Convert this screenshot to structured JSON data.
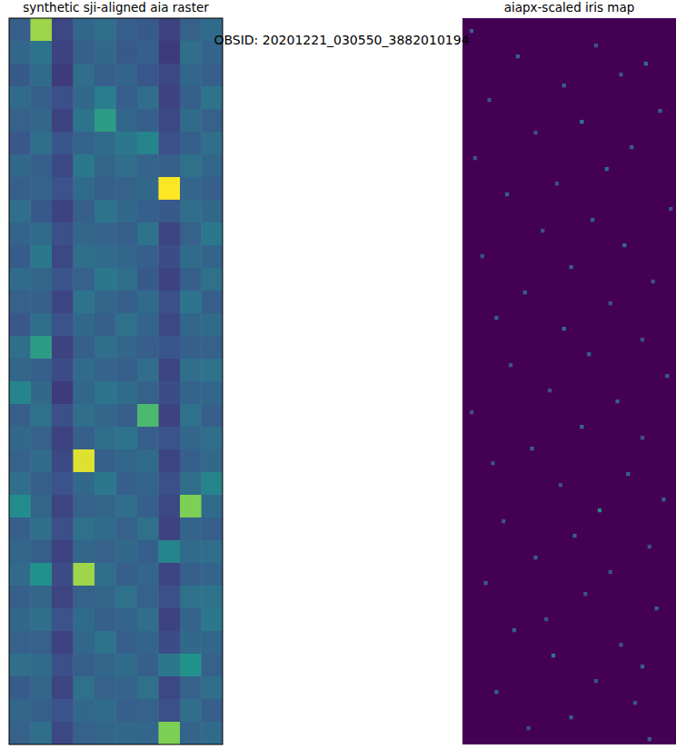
{
  "suptitle": "OBSID: 20201221_030550_3882010194",
  "chart_data": [
    {
      "type": "heatmap",
      "title": "synthetic sji-aligned aia raster",
      "tick_labels": false,
      "zlim": [
        0,
        1
      ],
      "cells": [
        [
          0.3,
          0.85,
          0.22,
          0.33,
          0.36,
          0.3,
          0.28,
          0.2,
          0.31,
          0.35
        ],
        [
          0.33,
          0.38,
          0.2,
          0.3,
          0.34,
          0.28,
          0.3,
          0.18,
          0.36,
          0.32
        ],
        [
          0.28,
          0.35,
          0.18,
          0.36,
          0.3,
          0.32,
          0.27,
          0.22,
          0.33,
          0.3
        ],
        [
          0.35,
          0.3,
          0.24,
          0.34,
          0.42,
          0.3,
          0.36,
          0.2,
          0.3,
          0.38
        ],
        [
          0.31,
          0.33,
          0.2,
          0.38,
          0.55,
          0.33,
          0.3,
          0.22,
          0.35,
          0.31
        ],
        [
          0.27,
          0.36,
          0.26,
          0.32,
          0.35,
          0.4,
          0.45,
          0.24,
          0.3,
          0.36
        ],
        [
          0.34,
          0.3,
          0.22,
          0.4,
          0.33,
          0.36,
          0.32,
          0.3,
          0.37,
          0.33
        ],
        [
          0.3,
          0.32,
          0.25,
          0.35,
          0.3,
          0.31,
          0.34,
          1.0,
          0.33,
          0.3
        ],
        [
          0.36,
          0.28,
          0.2,
          0.3,
          0.38,
          0.34,
          0.3,
          0.28,
          0.36,
          0.34
        ],
        [
          0.32,
          0.35,
          0.24,
          0.33,
          0.32,
          0.3,
          0.38,
          0.21,
          0.31,
          0.4
        ],
        [
          0.29,
          0.4,
          0.22,
          0.36,
          0.35,
          0.33,
          0.3,
          0.23,
          0.35,
          0.32
        ],
        [
          0.35,
          0.33,
          0.26,
          0.31,
          0.4,
          0.36,
          0.28,
          0.2,
          0.3,
          0.37
        ],
        [
          0.31,
          0.3,
          0.21,
          0.38,
          0.33,
          0.3,
          0.35,
          0.24,
          0.38,
          0.3
        ],
        [
          0.27,
          0.36,
          0.25,
          0.34,
          0.3,
          0.37,
          0.32,
          0.22,
          0.33,
          0.35
        ],
        [
          0.36,
          0.55,
          0.2,
          0.3,
          0.36,
          0.33,
          0.3,
          0.26,
          0.3,
          0.31
        ],
        [
          0.33,
          0.3,
          0.23,
          0.35,
          0.32,
          0.3,
          0.36,
          0.21,
          0.36,
          0.38
        ],
        [
          0.45,
          0.34,
          0.18,
          0.33,
          0.38,
          0.35,
          0.31,
          0.23,
          0.32,
          0.33
        ],
        [
          0.3,
          0.37,
          0.24,
          0.36,
          0.33,
          0.3,
          0.68,
          0.2,
          0.37,
          0.3
        ],
        [
          0.34,
          0.31,
          0.2,
          0.3,
          0.36,
          0.38,
          0.3,
          0.25,
          0.33,
          0.36
        ],
        [
          0.31,
          0.35,
          0.22,
          0.95,
          0.3,
          0.33,
          0.35,
          0.21,
          0.3,
          0.34
        ],
        [
          0.36,
          0.3,
          0.25,
          0.34,
          0.4,
          0.3,
          0.32,
          0.24,
          0.36,
          0.45
        ],
        [
          0.48,
          0.33,
          0.21,
          0.31,
          0.33,
          0.36,
          0.3,
          0.22,
          0.8,
          0.35
        ],
        [
          0.3,
          0.36,
          0.24,
          0.37,
          0.35,
          0.31,
          0.37,
          0.2,
          0.32,
          0.3
        ],
        [
          0.33,
          0.3,
          0.2,
          0.33,
          0.31,
          0.34,
          0.3,
          0.45,
          0.35,
          0.36
        ],
        [
          0.35,
          0.5,
          0.23,
          0.85,
          0.36,
          0.3,
          0.33,
          0.21,
          0.3,
          0.32
        ],
        [
          0.3,
          0.33,
          0.21,
          0.31,
          0.33,
          0.37,
          0.31,
          0.24,
          0.37,
          0.38
        ],
        [
          0.34,
          0.36,
          0.25,
          0.35,
          0.3,
          0.32,
          0.36,
          0.2,
          0.32,
          0.4
        ],
        [
          0.31,
          0.31,
          0.2,
          0.33,
          0.38,
          0.3,
          0.32,
          0.23,
          0.34,
          0.33
        ],
        [
          0.36,
          0.35,
          0.24,
          0.3,
          0.33,
          0.35,
          0.3,
          0.4,
          0.5,
          0.31
        ],
        [
          0.29,
          0.33,
          0.21,
          0.37,
          0.31,
          0.32,
          0.37,
          0.22,
          0.31,
          0.36
        ],
        [
          0.33,
          0.3,
          0.25,
          0.34,
          0.35,
          0.3,
          0.31,
          0.24,
          0.36,
          0.3
        ],
        [
          0.31,
          0.36,
          0.22,
          0.31,
          0.33,
          0.34,
          0.33,
          0.8,
          0.32,
          0.35
        ]
      ]
    },
    {
      "type": "heatmap",
      "title": "aiapx-scaled iris map",
      "tick_labels": false,
      "zlim": [
        0,
        1
      ],
      "shape": [
        200,
        60
      ],
      "background": 0,
      "cells": [
        [
          3,
          2,
          0.3
        ],
        [
          7,
          37,
          0.25
        ],
        [
          10,
          15,
          0.3
        ],
        [
          12,
          51,
          0.35
        ],
        [
          15,
          44,
          0.25
        ],
        [
          18,
          28,
          0.3
        ],
        [
          22,
          7,
          0.25
        ],
        [
          25,
          55,
          0.3
        ],
        [
          28,
          33,
          0.4
        ],
        [
          31,
          20,
          0.25
        ],
        [
          35,
          47,
          0.3
        ],
        [
          38,
          3,
          0.25
        ],
        [
          41,
          40,
          0.35
        ],
        [
          45,
          26,
          0.25
        ],
        [
          48,
          12,
          0.3
        ],
        [
          52,
          58,
          0.25
        ],
        [
          55,
          36,
          0.3
        ],
        [
          58,
          22,
          0.25
        ],
        [
          62,
          45,
          0.35
        ],
        [
          65,
          5,
          0.25
        ],
        [
          68,
          30,
          0.3
        ],
        [
          72,
          53,
          0.25
        ],
        [
          75,
          17,
          0.3
        ],
        [
          78,
          41,
          0.25
        ],
        [
          82,
          9,
          0.3
        ],
        [
          85,
          28,
          0.35
        ],
        [
          88,
          50,
          0.25
        ],
        [
          92,
          35,
          0.3
        ],
        [
          95,
          13,
          0.25
        ],
        [
          98,
          57,
          0.3
        ],
        [
          102,
          24,
          0.25
        ],
        [
          105,
          43,
          0.3
        ],
        [
          108,
          2,
          0.25
        ],
        [
          112,
          33,
          0.35
        ],
        [
          115,
          50,
          0.25
        ],
        [
          118,
          19,
          0.3
        ],
        [
          122,
          8,
          0.25
        ],
        [
          125,
          46,
          0.3
        ],
        [
          128,
          27,
          0.25
        ],
        [
          132,
          56,
          0.3
        ],
        [
          135,
          38,
          0.45
        ],
        [
          138,
          11,
          0.25
        ],
        [
          142,
          31,
          0.3
        ],
        [
          145,
          52,
          0.25
        ],
        [
          148,
          20,
          0.3
        ],
        [
          152,
          41,
          0.25
        ],
        [
          155,
          6,
          0.3
        ],
        [
          158,
          34,
          0.25
        ],
        [
          162,
          54,
          0.3
        ],
        [
          165,
          23,
          0.25
        ],
        [
          168,
          14,
          0.3
        ],
        [
          172,
          44,
          0.25
        ],
        [
          175,
          25,
          0.4
        ],
        [
          178,
          50,
          0.3
        ],
        [
          182,
          37,
          0.25
        ],
        [
          185,
          9,
          0.3
        ],
        [
          188,
          48,
          0.25
        ],
        [
          192,
          30,
          0.3
        ],
        [
          195,
          18,
          0.25
        ],
        [
          198,
          52,
          0.3
        ]
      ]
    }
  ]
}
